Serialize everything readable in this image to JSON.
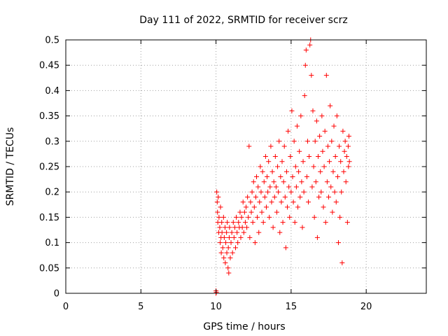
{
  "chart_data": {
    "type": "scatter",
    "title": "Day 111 of 2022, SRMTID for receiver scrz",
    "xlabel": "GPS time / hours",
    "ylabel": "SRMTID / TECUs",
    "xlim": [
      0,
      24
    ],
    "ylim": [
      0,
      0.5
    ],
    "x_ticks": [
      0,
      5,
      10,
      15,
      20
    ],
    "y_ticks": [
      0,
      0.05,
      0.1,
      0.15,
      0.2,
      0.25,
      0.3,
      0.35,
      0.4,
      0.45,
      0.5
    ],
    "x_tick_labels": [
      "0",
      "5",
      "10",
      "15",
      "20"
    ],
    "y_tick_labels": [
      "0",
      "0.05",
      "0.1",
      "0.15",
      "0.2",
      "0.25",
      "0.3",
      "0.35",
      "0.4",
      "0.45",
      "0.5"
    ],
    "grid": true,
    "marker": "+",
    "color": "#ff0000",
    "series": [
      {
        "name": "SRMTID",
        "points": [
          [
            10.0,
            0.0
          ],
          [
            10.0,
            0.005
          ],
          [
            10.02,
            0.002
          ],
          [
            10.05,
            0.2
          ],
          [
            10.08,
            0.18
          ],
          [
            10.1,
            0.16
          ],
          [
            10.12,
            0.14
          ],
          [
            10.15,
            0.19
          ],
          [
            10.18,
            0.12
          ],
          [
            10.2,
            0.15
          ],
          [
            10.25,
            0.13
          ],
          [
            10.28,
            0.1
          ],
          [
            10.3,
            0.17
          ],
          [
            10.33,
            0.11
          ],
          [
            10.35,
            0.08
          ],
          [
            10.38,
            0.14
          ],
          [
            10.4,
            0.12
          ],
          [
            10.45,
            0.09
          ],
          [
            10.5,
            0.15
          ],
          [
            10.52,
            0.07
          ],
          [
            10.55,
            0.11
          ],
          [
            10.6,
            0.13
          ],
          [
            10.62,
            0.06
          ],
          [
            10.65,
            0.1
          ],
          [
            10.7,
            0.12
          ],
          [
            10.72,
            0.08
          ],
          [
            10.75,
            0.14
          ],
          [
            10.8,
            0.05
          ],
          [
            10.82,
            0.09
          ],
          [
            10.85,
            0.04
          ],
          [
            10.88,
            0.11
          ],
          [
            10.9,
            0.13
          ],
          [
            10.95,
            0.07
          ],
          [
            11.0,
            0.1
          ],
          [
            11.05,
            0.12
          ],
          [
            11.1,
            0.08
          ],
          [
            11.15,
            0.14
          ],
          [
            11.2,
            0.11
          ],
          [
            11.25,
            0.13
          ],
          [
            11.3,
            0.09
          ],
          [
            11.35,
            0.15
          ],
          [
            11.4,
            0.12
          ],
          [
            11.45,
            0.1
          ],
          [
            11.5,
            0.14
          ],
          [
            11.55,
            0.13
          ],
          [
            11.6,
            0.16
          ],
          [
            11.65,
            0.11
          ],
          [
            11.7,
            0.15
          ],
          [
            11.75,
            0.13
          ],
          [
            11.8,
            0.18
          ],
          [
            11.85,
            0.12
          ],
          [
            11.9,
            0.16
          ],
          [
            11.95,
            0.14
          ],
          [
            12.0,
            0.17
          ],
          [
            12.05,
            0.13
          ],
          [
            12.1,
            0.19
          ],
          [
            12.15,
            0.15
          ],
          [
            12.2,
            0.29
          ],
          [
            12.25,
            0.11
          ],
          [
            12.3,
            0.18
          ],
          [
            12.35,
            0.16
          ],
          [
            12.4,
            0.2
          ],
          [
            12.45,
            0.14
          ],
          [
            12.5,
            0.22
          ],
          [
            12.55,
            0.17
          ],
          [
            12.6,
            0.1
          ],
          [
            12.65,
            0.19
          ],
          [
            12.7,
            0.23
          ],
          [
            12.75,
            0.15
          ],
          [
            12.8,
            0.21
          ],
          [
            12.85,
            0.12
          ],
          [
            12.9,
            0.18
          ],
          [
            12.95,
            0.25
          ],
          [
            13.0,
            0.2
          ],
          [
            13.05,
            0.16
          ],
          [
            13.1,
            0.24
          ],
          [
            13.15,
            0.14
          ],
          [
            13.2,
            0.22
          ],
          [
            13.25,
            0.19
          ],
          [
            13.3,
            0.27
          ],
          [
            13.35,
            0.17
          ],
          [
            13.4,
            0.23
          ],
          [
            13.45,
            0.2
          ],
          [
            13.5,
            0.26
          ],
          [
            13.55,
            0.15
          ],
          [
            13.6,
            0.21
          ],
          [
            13.65,
            0.29
          ],
          [
            13.7,
            0.18
          ],
          [
            13.75,
            0.24
          ],
          [
            13.8,
            0.13
          ],
          [
            13.85,
            0.22
          ],
          [
            13.9,
            0.19
          ],
          [
            13.95,
            0.27
          ],
          [
            14.0,
            0.21
          ],
          [
            14.05,
            0.16
          ],
          [
            14.1,
            0.25
          ],
          [
            14.15,
            0.2
          ],
          [
            14.2,
            0.3
          ],
          [
            14.25,
            0.12
          ],
          [
            14.3,
            0.23
          ],
          [
            14.35,
            0.18
          ],
          [
            14.4,
            0.26
          ],
          [
            14.45,
            0.14
          ],
          [
            14.5,
            0.22
          ],
          [
            14.55,
            0.29
          ],
          [
            14.6,
            0.19
          ],
          [
            14.65,
            0.09
          ],
          [
            14.7,
            0.24
          ],
          [
            14.75,
            0.17
          ],
          [
            14.8,
            0.32
          ],
          [
            14.85,
            0.21
          ],
          [
            14.9,
            0.15
          ],
          [
            14.95,
            0.27
          ],
          [
            15.0,
            0.2
          ],
          [
            15.05,
            0.36
          ],
          [
            15.1,
            0.23
          ],
          [
            15.15,
            0.18
          ],
          [
            15.2,
            0.3
          ],
          [
            15.25,
            0.14
          ],
          [
            15.3,
            0.25
          ],
          [
            15.35,
            0.21
          ],
          [
            15.4,
            0.33
          ],
          [
            15.45,
            0.17
          ],
          [
            15.5,
            0.24
          ],
          [
            15.55,
            0.28
          ],
          [
            15.6,
            0.19
          ],
          [
            15.65,
            0.35
          ],
          [
            15.7,
            0.22
          ],
          [
            15.75,
            0.13
          ],
          [
            15.8,
            0.26
          ],
          [
            15.85,
            0.2
          ],
          [
            15.9,
            0.39
          ],
          [
            15.95,
            0.45
          ],
          [
            16.0,
            0.48
          ],
          [
            16.05,
            0.23
          ],
          [
            16.1,
            0.3
          ],
          [
            16.15,
            0.18
          ],
          [
            16.2,
            0.27
          ],
          [
            16.25,
            0.49
          ],
          [
            16.3,
            0.5
          ],
          [
            16.35,
            0.43
          ],
          [
            16.4,
            0.21
          ],
          [
            16.45,
            0.36
          ],
          [
            16.5,
            0.25
          ],
          [
            16.55,
            0.15
          ],
          [
            16.6,
            0.3
          ],
          [
            16.65,
            0.22
          ],
          [
            16.7,
            0.34
          ],
          [
            16.75,
            0.11
          ],
          [
            16.8,
            0.27
          ],
          [
            16.85,
            0.19
          ],
          [
            16.9,
            0.31
          ],
          [
            16.95,
            0.24
          ],
          [
            17.0,
            0.2
          ],
          [
            17.05,
            0.35
          ],
          [
            17.1,
            0.28
          ],
          [
            17.15,
            0.17
          ],
          [
            17.2,
            0.25
          ],
          [
            17.25,
            0.32
          ],
          [
            17.3,
            0.14
          ],
          [
            17.35,
            0.43
          ],
          [
            17.4,
            0.22
          ],
          [
            17.45,
            0.29
          ],
          [
            17.5,
            0.19
          ],
          [
            17.55,
            0.26
          ],
          [
            17.6,
            0.37
          ],
          [
            17.65,
            0.21
          ],
          [
            17.7,
            0.3
          ],
          [
            17.75,
            0.16
          ],
          [
            17.8,
            0.24
          ],
          [
            17.85,
            0.33
          ],
          [
            17.9,
            0.2
          ],
          [
            17.95,
            0.27
          ],
          [
            18.0,
            0.18
          ],
          [
            18.05,
            0.35
          ],
          [
            18.1,
            0.23
          ],
          [
            18.15,
            0.1
          ],
          [
            18.2,
            0.29
          ],
          [
            18.25,
            0.15
          ],
          [
            18.3,
            0.26
          ],
          [
            18.35,
            0.2
          ],
          [
            18.4,
            0.06
          ],
          [
            18.45,
            0.32
          ],
          [
            18.5,
            0.24
          ],
          [
            18.55,
            0.28
          ],
          [
            18.6,
            0.3
          ],
          [
            18.65,
            0.22
          ],
          [
            18.7,
            0.27
          ],
          [
            18.75,
            0.14
          ],
          [
            18.8,
            0.29
          ],
          [
            18.82,
            0.25
          ],
          [
            18.85,
            0.31
          ],
          [
            18.88,
            0.26
          ]
        ]
      }
    ]
  }
}
